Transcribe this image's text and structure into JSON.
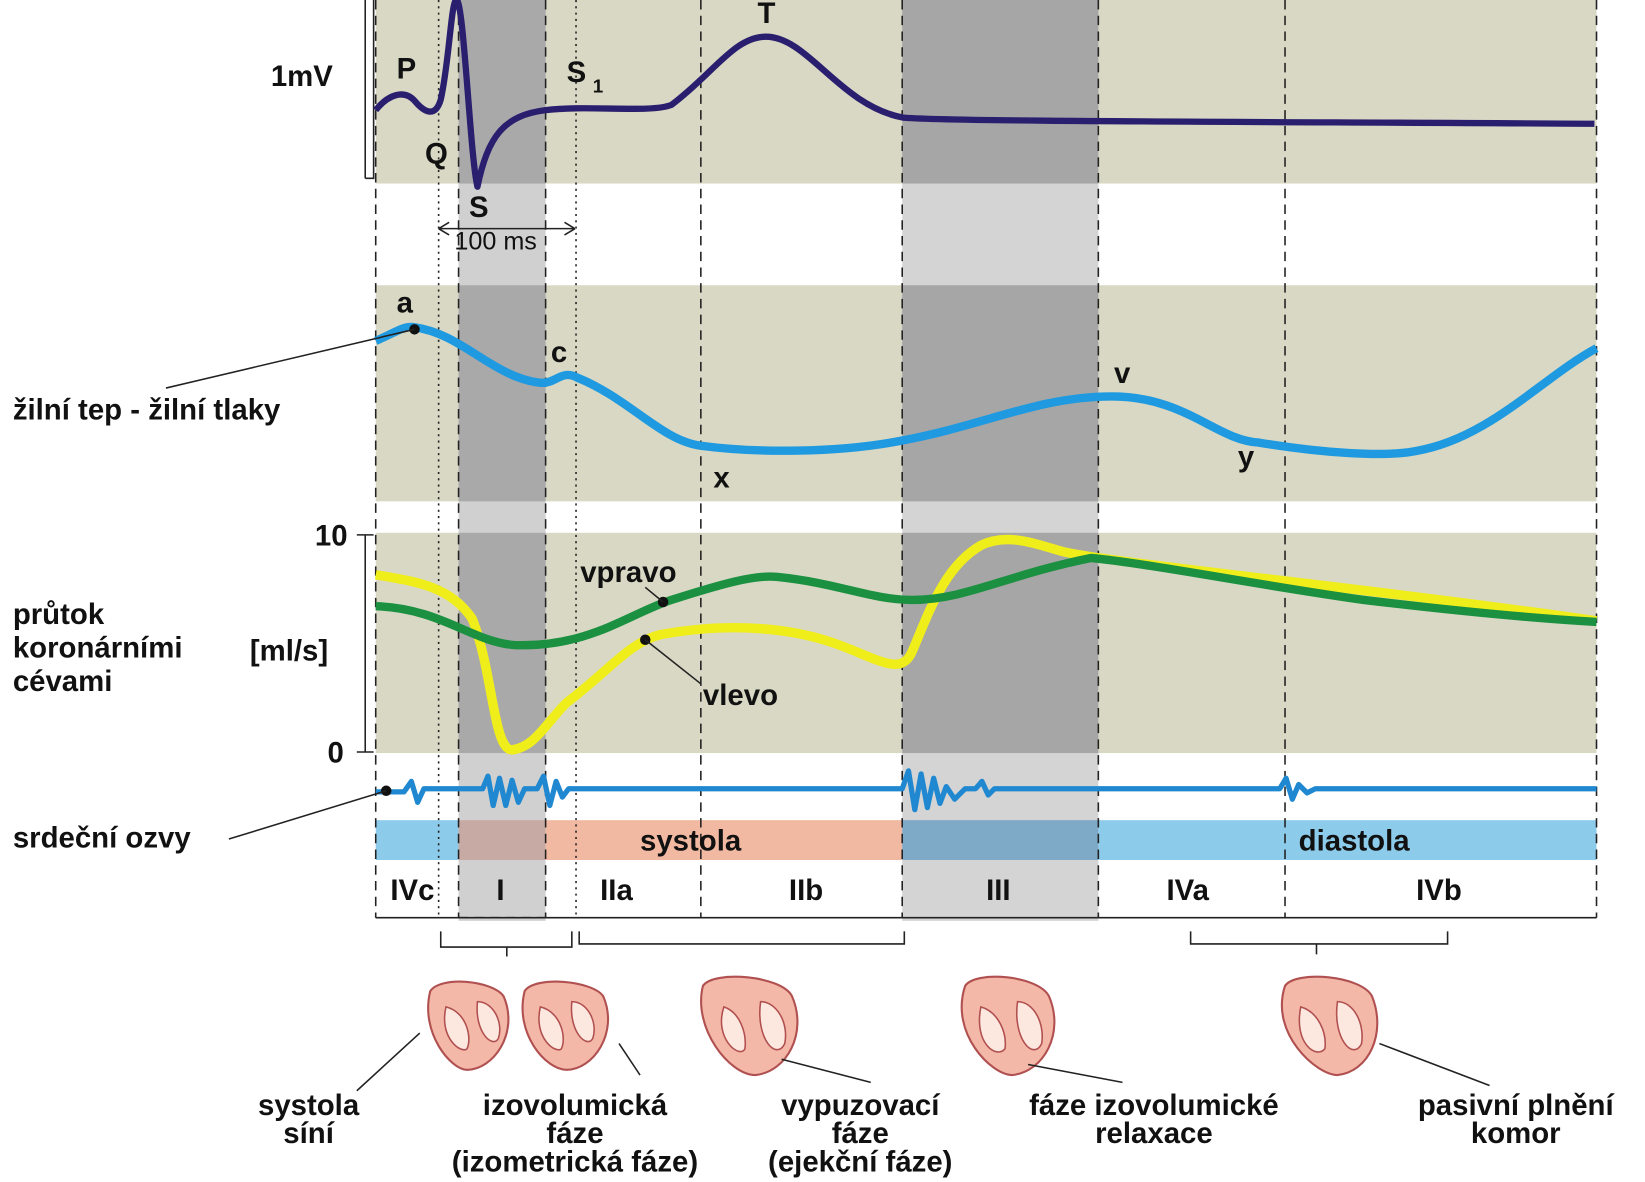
{
  "ecg": {
    "scale": "1mV",
    "p": "P",
    "q": "Q",
    "s": "S",
    "t": "T",
    "s1": {
      "letter": "S",
      "sub": "1"
    },
    "interval": "100 ms"
  },
  "venous": {
    "label": "žilní tep - žilní tlaky",
    "a": "a",
    "c": "c",
    "x": "x",
    "v": "v",
    "y": "y"
  },
  "coronary": {
    "label": [
      "průtok",
      "koronárními",
      "cévami"
    ],
    "unit": "[ml/s]",
    "tick_top": "10",
    "tick_bottom": "0",
    "right": "vpravo",
    "left": "vlevo"
  },
  "sounds": {
    "label": "srdeční ozvy"
  },
  "periods": {
    "systole": "systola",
    "diastole": "diastola"
  },
  "phases": [
    "IVc",
    "I",
    "IIa",
    "IIb",
    "III",
    "IVa",
    "IVb"
  ],
  "captions": [
    [
      "systola",
      "síní"
    ],
    [
      "izovolumická",
      "fáze",
      "(izometrická fáze)"
    ],
    [
      "vypuzovací",
      "fáze",
      "(ejekční fáze)"
    ],
    [
      "fáze izovolumické",
      "relaxace"
    ],
    [
      "pasivní plnění",
      "komor"
    ]
  ]
}
